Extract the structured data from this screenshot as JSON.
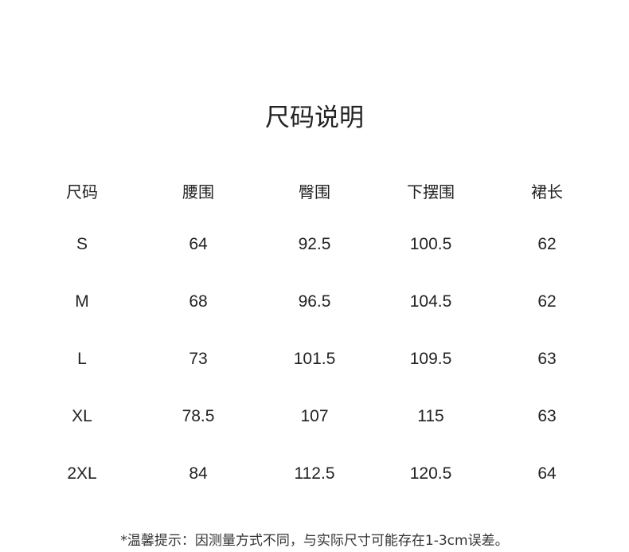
{
  "title": "尺码说明",
  "table": {
    "headers": [
      "尺码",
      "腰围",
      "臀围",
      "下摆围",
      "裙长"
    ],
    "rows": [
      [
        "S",
        "64",
        "92.5",
        "100.5",
        "62"
      ],
      [
        "M",
        "68",
        "96.5",
        "104.5",
        "62"
      ],
      [
        "L",
        "73",
        "101.5",
        "109.5",
        "63"
      ],
      [
        "XL",
        "78.5",
        "107",
        "115",
        "63"
      ],
      [
        "2XL",
        "84",
        "112.5",
        "120.5",
        "64"
      ]
    ]
  },
  "note": "*温馨提示：因测量方式不同，与实际尺寸可能存在1-3cm误差。"
}
